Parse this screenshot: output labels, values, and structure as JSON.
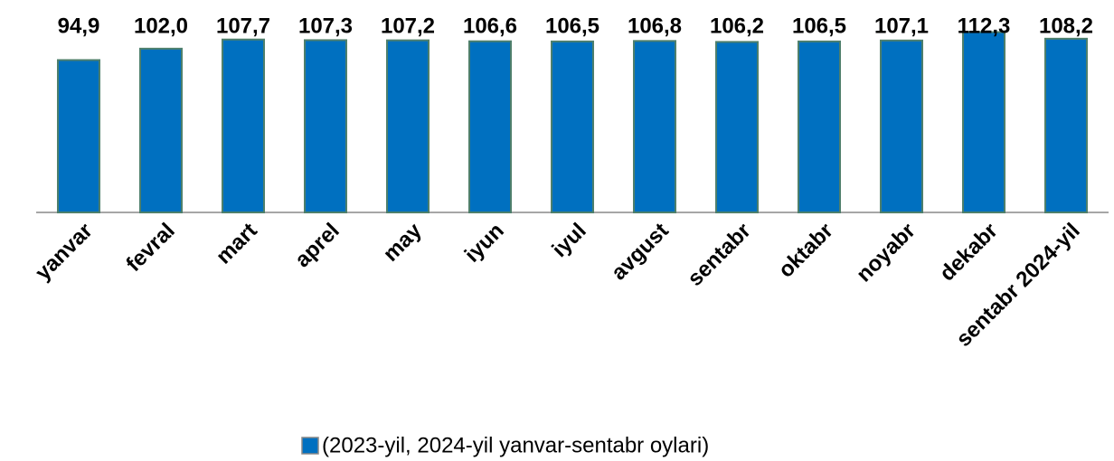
{
  "chart_data": {
    "type": "bar",
    "categories": [
      "yanvar",
      "fevral",
      "mart",
      "aprel",
      "may",
      "iyun",
      "iyul",
      "avgust",
      "sentabr",
      "oktabr",
      "noyabr",
      "dekabr",
      "sentabr 2024-yil"
    ],
    "values": [
      94.9,
      102.0,
      107.7,
      107.3,
      107.2,
      106.6,
      106.5,
      106.8,
      106.2,
      106.5,
      107.1,
      112.3,
      108.2
    ],
    "value_labels": [
      "94,9",
      "102,0",
      "107,7",
      "107,3",
      "107,2",
      "106,6",
      "106,5",
      "106,8",
      "106,2",
      "106,5",
      "107,1",
      "112,3",
      "108,2"
    ],
    "series_name": "(2023-yil, 2024-yil yanvar-sentabr oylari)",
    "color": "#0070c0",
    "ylim": [
      0,
      125
    ]
  }
}
